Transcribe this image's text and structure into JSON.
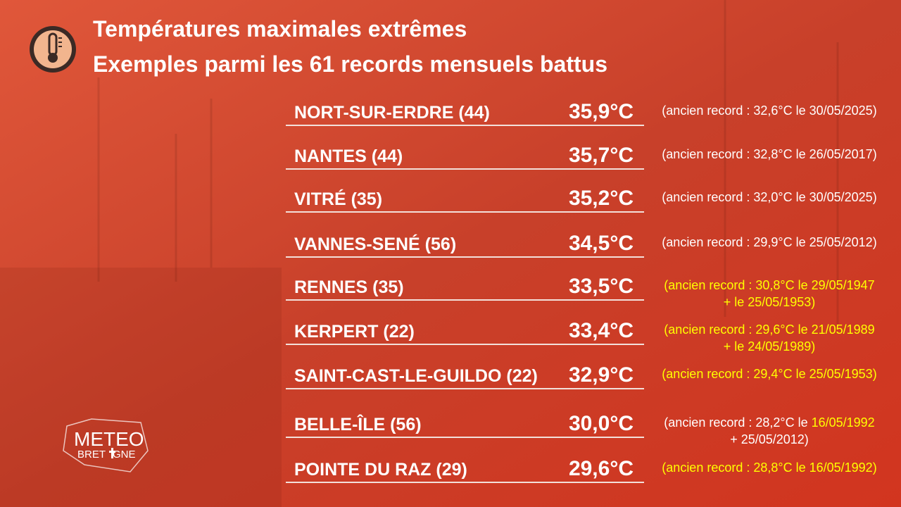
{
  "header": {
    "title": [
      "Températures maximales extrêmes",
      "Exemples parmi les 61 records mensuels battus"
    ]
  },
  "logo": [
    "METEO",
    "BRET",
    "GNE"
  ],
  "rows": [
    {
      "station": "NORT-SUR-ERDRE (44)",
      "temperature": "35,9°C",
      "note": [
        [
          {
            "text": "(ancien record : 32,6°C le 30/05/2025)",
            "color": "#ffffff"
          }
        ]
      ]
    },
    {
      "station": "NANTES (44)",
      "temperature": "35,7°C",
      "note": [
        [
          {
            "text": "(ancien record : 32,8°C le 26/05/2017)",
            "color": "#ffffff"
          }
        ]
      ]
    },
    {
      "station": "VITRÉ (35)",
      "temperature": "35,2°C",
      "note": [
        [
          {
            "text": "(ancien record : 32,0°C le 30/05/2025)",
            "color": "#ffffff"
          }
        ]
      ]
    },
    {
      "station": "VANNES-SENÉ (56)",
      "temperature": "34,5°C",
      "note": [
        [
          {
            "text": "(ancien record : 29,9°C le 25/05/2012)",
            "color": "#ffffff"
          }
        ]
      ]
    },
    {
      "station": "RENNES (35)",
      "temperature": "33,5°C",
      "note": [
        [
          {
            "text": "(ancien record : 30,8°C le 29/05/1947",
            "color": "#ffff00"
          }
        ],
        [
          {
            "text": "+ le 25/05/1953)",
            "color": "#ffff00"
          }
        ]
      ]
    },
    {
      "station": "KERPERT (22)",
      "temperature": "33,4°C",
      "note": [
        [
          {
            "text": "(ancien record : 29,6°C le 21/05/1989",
            "color": "#ffff00"
          }
        ],
        [
          {
            "text": "+ le 24/05/1989)",
            "color": "#ffff00"
          }
        ]
      ]
    },
    {
      "station": "SAINT-CAST-LE-GUILDO (22)",
      "temperature": "32,9°C",
      "note": [
        [
          {
            "text": "(ancien record : 29,4°C le 25/05/1953)",
            "color": "#ffff00"
          }
        ]
      ]
    },
    {
      "station": "BELLE-ÎLE (56)",
      "temperature": "30,0°C",
      "note": [
        [
          {
            "text": "(ancien record : 28,2°C le ",
            "color": "#ffffff"
          },
          {
            "text": "16/05/1992",
            "color": "#ffff00"
          }
        ],
        [
          {
            "text": "+ 25/05/2012)",
            "color": "#ffffff"
          }
        ]
      ]
    },
    {
      "station": "POINTE DU RAZ (29)",
      "temperature": "29,6°C",
      "note": [
        [
          {
            "text": "(ancien record : 28,8°C le 16/05/1992)",
            "color": "#ffff00"
          }
        ]
      ]
    }
  ]
}
